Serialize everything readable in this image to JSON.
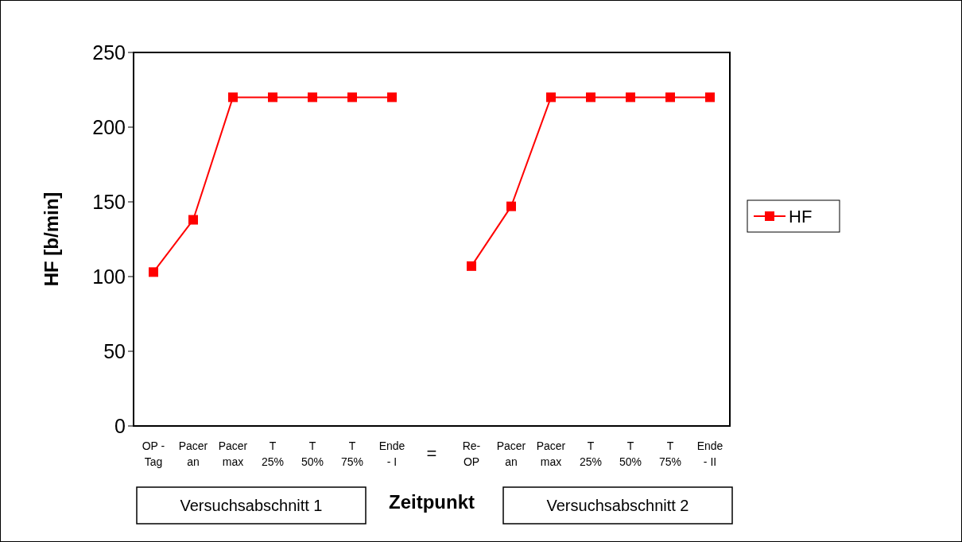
{
  "chart_data": {
    "type": "line",
    "xlabel": "Zeitpunkt",
    "ylabel": "HF [b/min]",
    "categories": [
      "OP -\nTag",
      "Pacer\nan",
      "Pacer\nmax",
      "T\n25%",
      "T\n50%",
      "T\n75%",
      "Ende\n- I",
      "=",
      "Re-\nOP",
      "Pacer\nan",
      "Pacer\nmax",
      "T\n25%",
      "T\n50%",
      "T\n75%",
      "Ende\n- II"
    ],
    "series": [
      {
        "name": "HF",
        "color": "#ff0000",
        "values": [
          103,
          138,
          220,
          220,
          220,
          220,
          220,
          null,
          107,
          147,
          220,
          220,
          220,
          220,
          220
        ]
      }
    ],
    "ylim": [
      0,
      250
    ],
    "yticks": [
      0,
      50,
      100,
      150,
      200,
      250
    ],
    "grid": false,
    "legend": "right",
    "marker": "square",
    "line_style": "solid",
    "annotations": [
      "Versuchsabschnitt 1",
      "Versuchsabschnitt 2"
    ]
  }
}
